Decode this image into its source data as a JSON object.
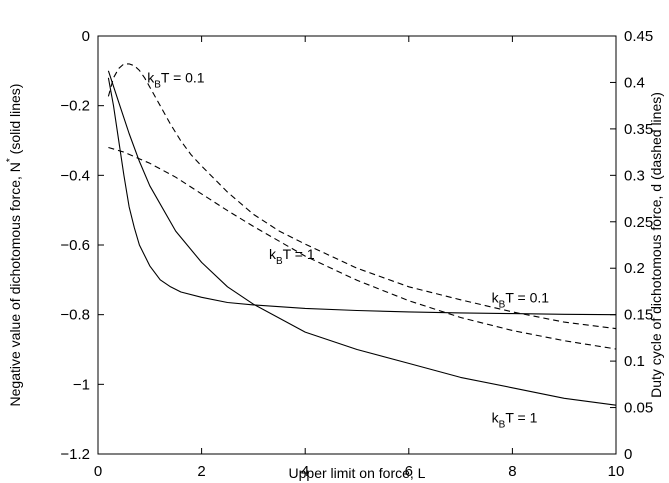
{
  "chart_data": {
    "type": "line",
    "title": "",
    "xlabel": "Upper limit on force, L",
    "ylabel_left": "Negative value of dichotomous force, N* (solid lines)",
    "ylabel_left_main": "Negative value of dichotomous force, N",
    "ylabel_left_sup": "*",
    "ylabel_left_suffix": " (solid lines)",
    "ylabel_right": "Duty cycle of dichotomous force, d (dashed lines)",
    "xlim": [
      0,
      10
    ],
    "ylim_left": [
      -1.2,
      0
    ],
    "ylim_right": [
      0,
      0.45
    ],
    "x_ticks": [
      "0",
      "2",
      "4",
      "6",
      "8",
      "10"
    ],
    "y_left_ticks": [
      "0",
      "−0.2",
      "−0.4",
      "−0.6",
      "−0.8",
      "−1",
      "−1.2"
    ],
    "y_right_ticks": [
      "0.45",
      "0.4",
      "0.35",
      "0.3",
      "0.25",
      "0.2",
      "0.15",
      "0.1",
      "0.05",
      "0"
    ],
    "grid": false,
    "series": [
      {
        "axis": "left",
        "style": "solid",
        "x": [
          0.2,
          0.3,
          0.4,
          0.5,
          0.6,
          0.7,
          0.8,
          1.0,
          1.2,
          1.4,
          1.6,
          2.0,
          2.5,
          3,
          4,
          5,
          6,
          7,
          8,
          9,
          10
        ],
        "y": [
          -0.12,
          -0.2,
          -0.3,
          -0.4,
          -0.49,
          -0.55,
          -0.6,
          -0.66,
          -0.7,
          -0.72,
          -0.735,
          -0.75,
          -0.765,
          -0.772,
          -0.782,
          -0.788,
          -0.792,
          -0.795,
          -0.797,
          -0.799,
          -0.8
        ]
      },
      {
        "axis": "left",
        "style": "solid",
        "x": [
          0.2,
          0.4,
          0.6,
          0.8,
          1.0,
          1.5,
          2.0,
          2.5,
          3,
          4,
          5,
          6,
          7,
          8,
          9,
          10
        ],
        "y": [
          -0.1,
          -0.19,
          -0.28,
          -0.36,
          -0.43,
          -0.56,
          -0.65,
          -0.72,
          -0.77,
          -0.85,
          -0.9,
          -0.94,
          -0.98,
          -1.01,
          -1.04,
          -1.06
        ]
      },
      {
        "axis": "right",
        "style": "dashed",
        "x": [
          0.2,
          0.3,
          0.4,
          0.5,
          0.6,
          0.7,
          0.8,
          0.9,
          1.0,
          1.2,
          1.4,
          1.6,
          1.8,
          2.0,
          2.5,
          3,
          3.5,
          4,
          5,
          6,
          7,
          8,
          9,
          10
        ],
        "y": [
          0.385,
          0.405,
          0.415,
          0.42,
          0.42,
          0.418,
          0.413,
          0.405,
          0.395,
          0.375,
          0.355,
          0.337,
          0.322,
          0.31,
          0.282,
          0.258,
          0.24,
          0.226,
          0.2,
          0.18,
          0.166,
          0.153,
          0.142,
          0.135
        ]
      },
      {
        "axis": "right",
        "style": "dashed",
        "x": [
          0.2,
          0.5,
          1,
          1.5,
          2,
          2.5,
          3,
          4,
          5,
          6,
          7,
          8,
          9,
          10
        ],
        "y": [
          0.33,
          0.325,
          0.313,
          0.298,
          0.28,
          0.262,
          0.245,
          0.213,
          0.187,
          0.165,
          0.147,
          0.133,
          0.122,
          0.113
        ]
      }
    ],
    "annotations": [
      {
        "label_main": "k",
        "label_sub": "B",
        "label_rest": "T = 0.1",
        "at_x": 0.95,
        "at_y_right": 0.4
      },
      {
        "label_main": "k",
        "label_sub": "B",
        "label_rest": "T = 1",
        "at_x": 3.3,
        "at_y_right": 0.21
      },
      {
        "label_main": "k",
        "label_sub": "B",
        "label_rest": "T = 0.1",
        "at_x": 7.6,
        "at_y_left": -0.765
      },
      {
        "label_main": "k",
        "label_sub": "B",
        "label_rest": "T = 1",
        "at_x": 7.6,
        "at_y_left": -1.11
      }
    ]
  }
}
